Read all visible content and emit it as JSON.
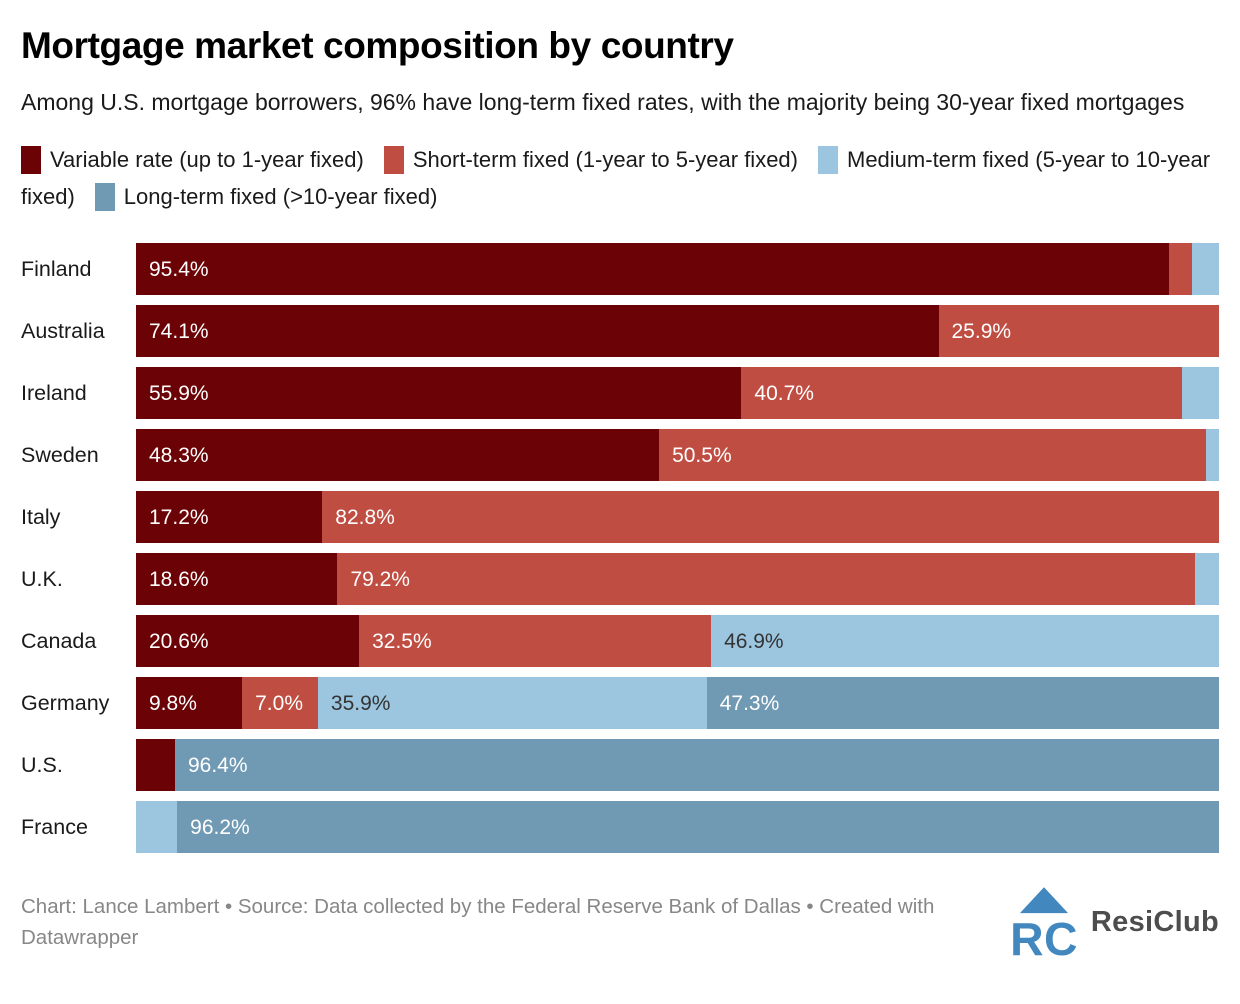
{
  "header": {
    "title": "Mortgage market composition by country",
    "subtitle": "Among U.S. mortgage borrowers, 96% have long-term fixed rates, with the majority being 30-year fixed mortgages"
  },
  "colors": {
    "variable": "#6B0205",
    "short": "#C04D42",
    "medium": "#9CC6E0",
    "long": "#7099B3",
    "label_on_dark": "#FFFFFF",
    "label_on_light": "#333333",
    "logo_blue": "#4288BF"
  },
  "legend": {
    "items": [
      {
        "key": "variable",
        "label": "Variable rate (up to 1-year fixed)",
        "color": "#6B0205"
      },
      {
        "key": "short",
        "label": "Short-term fixed (1-year to 5-year fixed)",
        "color": "#C04D42"
      },
      {
        "key": "medium",
        "label": "Medium-term fixed (5-year to 10-year fixed)",
        "color": "#9CC6E0"
      },
      {
        "key": "long",
        "label": "Long-term fixed (>10-year fixed)",
        "color": "#7099B3"
      }
    ]
  },
  "chart_data": {
    "type": "bar",
    "orientation": "horizontal",
    "stacked": true,
    "unit": "%",
    "xlim": [
      0,
      100
    ],
    "grid": false,
    "legend_position": "top",
    "title": "Mortgage market composition by country",
    "subtitle": "Among U.S. mortgage borrowers, 96% have long-term fixed rates, with the majority being 30-year fixed mortgages",
    "categories": [
      "Finland",
      "Australia",
      "Ireland",
      "Sweden",
      "Italy",
      "U.K.",
      "Canada",
      "Germany",
      "U.S.",
      "France"
    ],
    "series": [
      {
        "name": "Variable rate (up to 1-year fixed)",
        "color": "#6B0205",
        "values": [
          95.4,
          74.1,
          55.9,
          48.3,
          17.2,
          18.6,
          20.6,
          9.8,
          3.6,
          0
        ]
      },
      {
        "name": "Short-term fixed (1-year to 5-year fixed)",
        "color": "#C04D42",
        "values": [
          2.1,
          25.9,
          40.7,
          50.5,
          82.8,
          79.2,
          32.5,
          7.0,
          0,
          0
        ]
      },
      {
        "name": "Medium-term fixed (5-year to 10-year fixed)",
        "color": "#9CC6E0",
        "values": [
          2.5,
          0,
          3.4,
          1.2,
          0,
          2.2,
          46.9,
          35.9,
          0,
          3.8
        ]
      },
      {
        "name": "Long-term fixed (>10-year fixed)",
        "color": "#7099B3",
        "values": [
          0,
          0,
          0,
          0,
          0,
          0,
          0,
          47.3,
          96.4,
          96.2
        ]
      }
    ]
  },
  "rows": [
    {
      "name": "Finland",
      "segments": [
        {
          "type": "variable",
          "value": 95.4,
          "label": "95.4%"
        },
        {
          "type": "short",
          "value": 2.1,
          "label": ""
        },
        {
          "type": "medium",
          "value": 2.5,
          "label": ""
        }
      ]
    },
    {
      "name": "Australia",
      "segments": [
        {
          "type": "variable",
          "value": 74.1,
          "label": "74.1%"
        },
        {
          "type": "short",
          "value": 25.9,
          "label": "25.9%"
        }
      ]
    },
    {
      "name": "Ireland",
      "segments": [
        {
          "type": "variable",
          "value": 55.9,
          "label": "55.9%"
        },
        {
          "type": "short",
          "value": 40.7,
          "label": "40.7%"
        },
        {
          "type": "medium",
          "value": 3.4,
          "label": ""
        }
      ]
    },
    {
      "name": "Sweden",
      "segments": [
        {
          "type": "variable",
          "value": 48.3,
          "label": "48.3%"
        },
        {
          "type": "short",
          "value": 50.5,
          "label": "50.5%"
        },
        {
          "type": "medium",
          "value": 1.2,
          "label": ""
        }
      ]
    },
    {
      "name": "Italy",
      "segments": [
        {
          "type": "variable",
          "value": 17.2,
          "label": "17.2%"
        },
        {
          "type": "short",
          "value": 82.8,
          "label": "82.8%"
        }
      ]
    },
    {
      "name": "U.K.",
      "segments": [
        {
          "type": "variable",
          "value": 18.6,
          "label": "18.6%"
        },
        {
          "type": "short",
          "value": 79.2,
          "label": "79.2%"
        },
        {
          "type": "medium",
          "value": 2.2,
          "label": ""
        }
      ]
    },
    {
      "name": "Canada",
      "segments": [
        {
          "type": "variable",
          "value": 20.6,
          "label": "20.6%"
        },
        {
          "type": "short",
          "value": 32.5,
          "label": "32.5%"
        },
        {
          "type": "medium",
          "value": 46.9,
          "label": "46.9%"
        }
      ]
    },
    {
      "name": "Germany",
      "segments": [
        {
          "type": "variable",
          "value": 9.8,
          "label": "9.8%"
        },
        {
          "type": "short",
          "value": 7.0,
          "label": "7.0%"
        },
        {
          "type": "medium",
          "value": 35.9,
          "label": "35.9%"
        },
        {
          "type": "long",
          "value": 47.3,
          "label": "47.3%"
        }
      ]
    },
    {
      "name": "U.S.",
      "segments": [
        {
          "type": "variable",
          "value": 3.6,
          "label": ""
        },
        {
          "type": "long",
          "value": 96.4,
          "label": "96.4%"
        }
      ]
    },
    {
      "name": "France",
      "segments": [
        {
          "type": "medium",
          "value": 3.8,
          "label": ""
        },
        {
          "type": "long",
          "value": 96.2,
          "label": "96.2%"
        }
      ]
    }
  ],
  "footer": {
    "credit": "Chart: Lance Lambert • Source: Data collected by the Federal Reserve Bank of Dallas • Created with Datawrapper",
    "logo_text": "ResiClub"
  }
}
